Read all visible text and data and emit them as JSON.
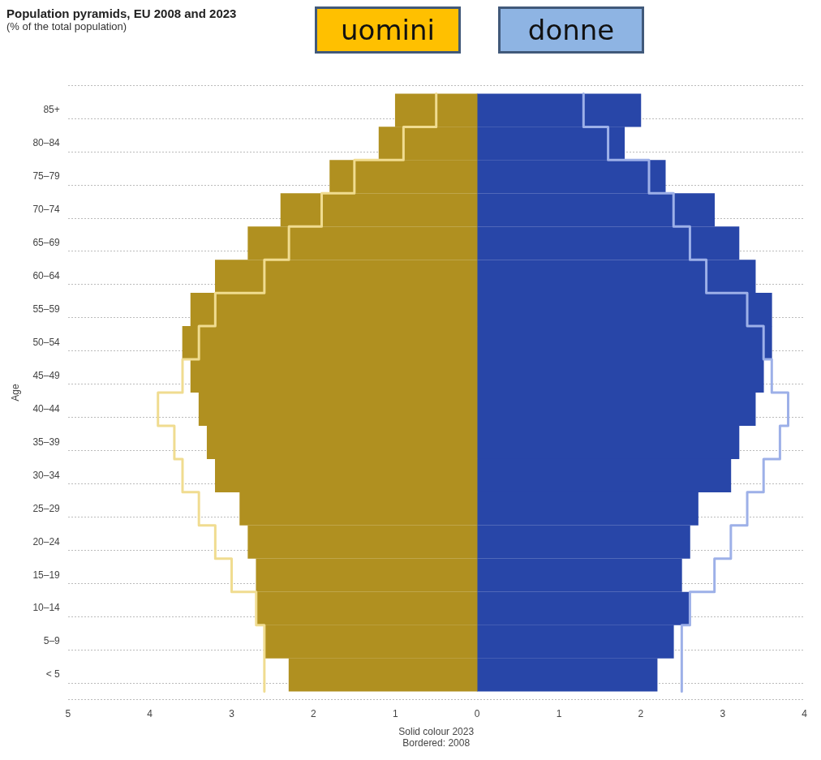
{
  "chart_data": {
    "type": "bar",
    "orientation": "horizontal",
    "stacked": true,
    "title": "Population pyramids, EU 2008 and 2023",
    "subtitle": "(% of the total population)",
    "ylabel": "Age",
    "xlabel": "Solid colour 2023\nBordered: 2008",
    "annotations": [
      "uomini",
      "donne"
    ],
    "categories": [
      "85+",
      "80–84",
      "75–79",
      "70–74",
      "65–69",
      "60–64",
      "55–59",
      "50–54",
      "45–49",
      "40–44",
      "35–39",
      "30–34",
      "25–29",
      "20–24",
      "15–19",
      "10–14",
      "5–9",
      "< 5"
    ],
    "series": [
      {
        "color": "#b09020",
        "values": [
          -1.0,
          -1.2,
          -1.8,
          -2.4,
          -2.8,
          -3.2,
          -3.5,
          -3.6,
          -3.5,
          -3.4,
          -3.3,
          -3.2,
          -2.9,
          -2.8,
          -2.7,
          -2.7,
          -2.6,
          -2.3
        ]
      },
      {
        "color": "#2846a8",
        "values": [
          2.0,
          1.8,
          2.3,
          2.9,
          3.2,
          3.4,
          3.6,
          3.6,
          3.5,
          3.4,
          3.2,
          3.1,
          2.7,
          2.6,
          2.5,
          2.6,
          2.4,
          2.2
        ]
      },
      {
        "type": "step",
        "color": "#f0dc90",
        "values": [
          -0.5,
          -0.9,
          -1.5,
          -1.9,
          -2.3,
          -2.6,
          -3.2,
          -3.4,
          -3.6,
          -3.9,
          -3.7,
          -3.6,
          -3.4,
          -3.2,
          -3.0,
          -2.7,
          -2.6,
          -2.6
        ]
      },
      {
        "type": "step",
        "color": "#9db0e8",
        "values": [
          1.3,
          1.6,
          2.1,
          2.4,
          2.6,
          2.8,
          3.3,
          3.5,
          3.6,
          3.8,
          3.7,
          3.5,
          3.3,
          3.1,
          2.9,
          2.6,
          2.5,
          2.5
        ]
      }
    ],
    "xlim": [
      -5,
      4
    ],
    "xticks": [
      {
        "value": -5,
        "label": "5"
      },
      {
        "value": -4,
        "label": "4"
      },
      {
        "value": -3,
        "label": "3"
      },
      {
        "value": -2,
        "label": "2"
      },
      {
        "value": -1,
        "label": "1"
      },
      0,
      1,
      2,
      3,
      4
    ],
    "grid": "y",
    "legend": false
  }
}
